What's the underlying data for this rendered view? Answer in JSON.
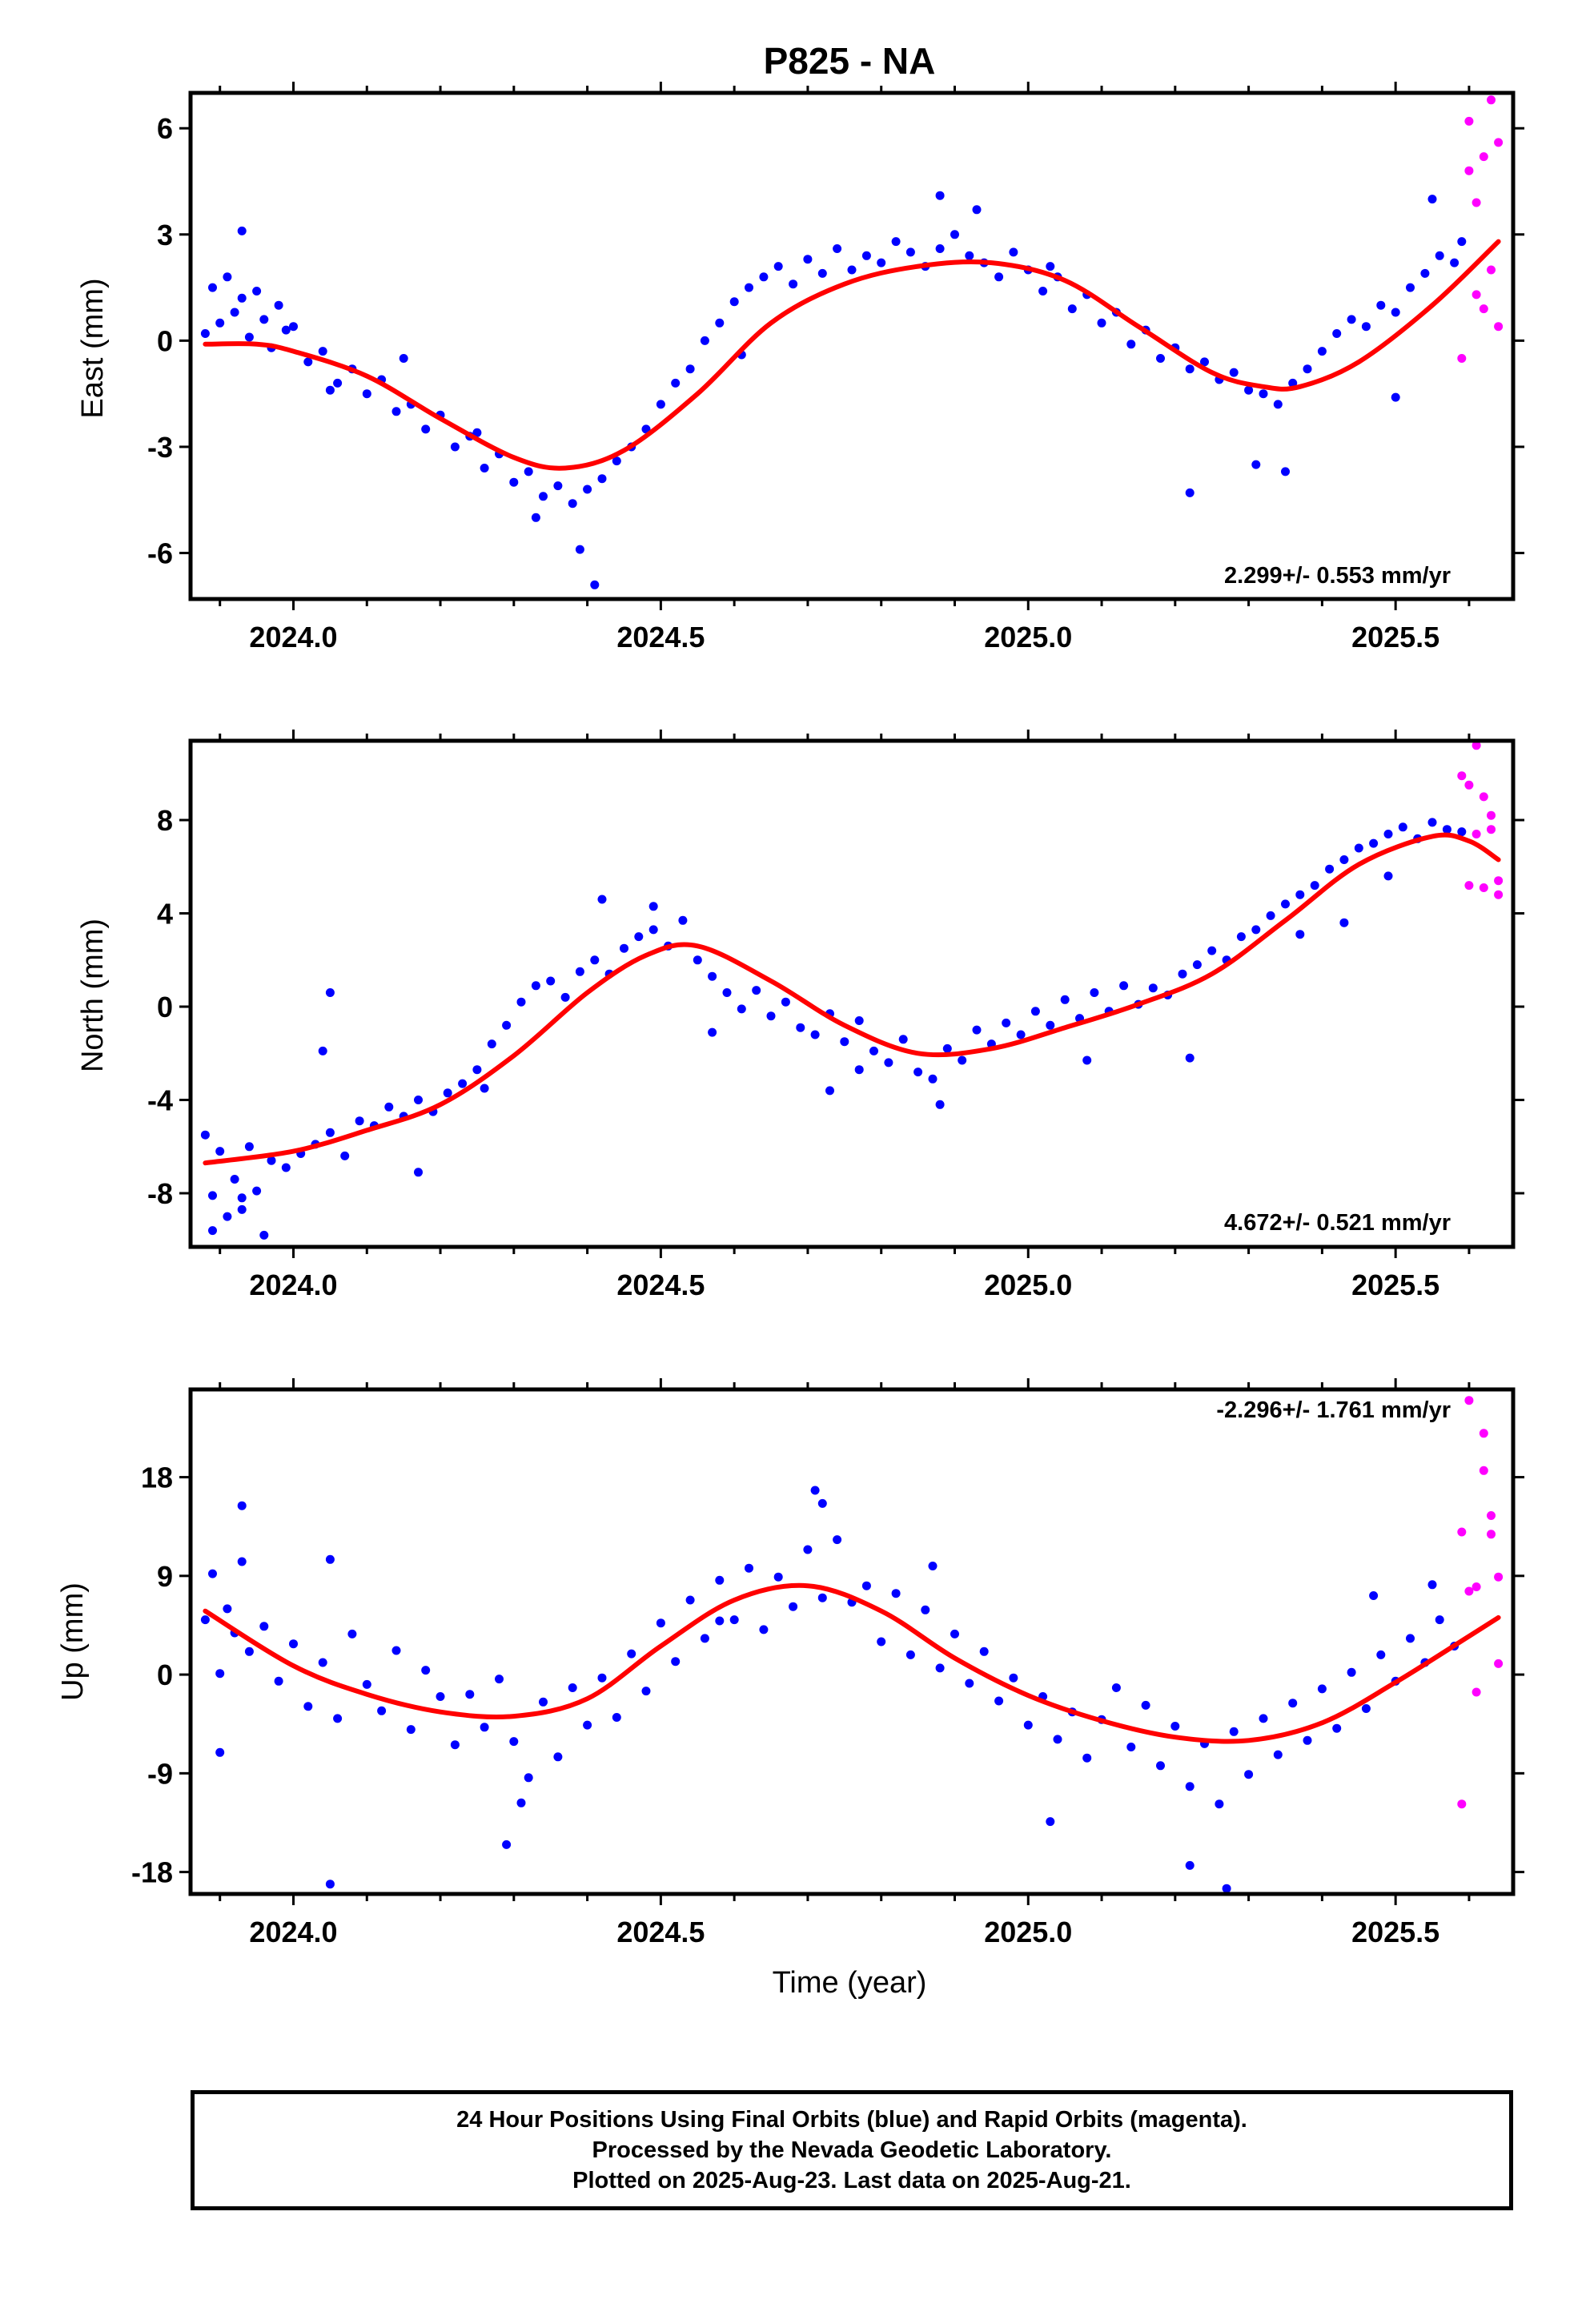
{
  "title": "P825 - NA",
  "xlabel": "Time (year)",
  "colors": {
    "final": "#0000ff",
    "rapid": "#ff00ff",
    "model": "#ff0000",
    "frame": "#000000"
  },
  "footer": {
    "line1": "24 Hour Positions Using Final Orbits (blue) and Rapid Orbits (magenta).",
    "line2": "Processed by the Nevada Geodetic Laboratory.",
    "line3": "Plotted on 2025-Aug-23. Last data on 2025-Aug-21."
  },
  "chart_data": [
    {
      "type": "scatter",
      "ylabel": "East (mm)",
      "rate_label": "2.299+/- 0.553 mm/yr",
      "xlim": [
        2023.86,
        2025.66
      ],
      "ylim": [
        -7.3,
        7.0
      ],
      "yticks": [
        -6,
        -3,
        0,
        3,
        6
      ],
      "xticks": [
        2024.0,
        2024.5,
        2025.0,
        2025.5
      ],
      "xtick_labels": [
        "2024.0",
        "2024.5",
        "2025.0",
        "2025.5"
      ],
      "model": {
        "name": "fit",
        "x": [
          2023.88,
          2023.95,
          2024.0,
          2024.1,
          2024.2,
          2024.3,
          2024.37,
          2024.45,
          2024.55,
          2024.65,
          2024.75,
          2024.85,
          2024.95,
          2025.05,
          2025.15,
          2025.25,
          2025.32,
          2025.37,
          2025.45,
          2025.55,
          2025.64
        ],
        "y": [
          -0.1,
          -0.1,
          -0.3,
          -1.0,
          -2.2,
          -3.3,
          -3.6,
          -3.1,
          -1.5,
          0.5,
          1.6,
          2.1,
          2.2,
          1.7,
          0.4,
          -0.9,
          -1.3,
          -1.3,
          -0.6,
          1.0,
          2.8
        ]
      },
      "final": {
        "x": [
          2023.88,
          2023.89,
          2023.9,
          2023.91,
          2023.92,
          2023.93,
          2023.94,
          2023.95,
          2023.96,
          2023.97,
          2023.98,
          2023.99,
          2024.0,
          2024.02,
          2024.04,
          2024.06,
          2024.08,
          2024.1,
          2024.12,
          2024.14,
          2024.16,
          2024.18,
          2024.2,
          2024.22,
          2024.24,
          2024.26,
          2024.28,
          2024.3,
          2024.32,
          2024.34,
          2024.36,
          2024.38,
          2024.4,
          2024.42,
          2024.44,
          2024.46,
          2024.48,
          2024.5,
          2024.52,
          2024.54,
          2024.56,
          2024.58,
          2024.6,
          2024.62,
          2024.64,
          2024.66,
          2024.68,
          2024.7,
          2024.72,
          2024.74,
          2024.76,
          2024.78,
          2024.8,
          2024.82,
          2024.84,
          2024.86,
          2024.88,
          2024.9,
          2024.92,
          2024.94,
          2024.96,
          2024.98,
          2025.0,
          2025.02,
          2025.04,
          2025.06,
          2025.08,
          2025.1,
          2025.12,
          2025.14,
          2025.16,
          2025.18,
          2025.2,
          2025.22,
          2025.24,
          2025.26,
          2025.28,
          2025.3,
          2025.32,
          2025.34,
          2025.36,
          2025.38,
          2025.4,
          2025.42,
          2025.44,
          2025.46,
          2025.48,
          2025.5,
          2025.52,
          2025.54,
          2025.56,
          2025.58,
          2025.59,
          2023.93,
          2024.05,
          2024.15,
          2024.25,
          2024.33,
          2024.39,
          2024.41,
          2024.61,
          2024.88,
          2024.93,
          2025.03,
          2025.22,
          2025.31,
          2025.35,
          2025.5,
          2025.55
        ],
        "y": [
          0.2,
          1.5,
          0.5,
          1.8,
          0.8,
          1.2,
          0.1,
          1.4,
          0.6,
          -0.2,
          1.0,
          0.3,
          0.4,
          -0.6,
          -0.3,
          -1.2,
          -0.8,
          -1.5,
          -1.1,
          -2.0,
          -1.8,
          -2.5,
          -2.1,
          -3.0,
          -2.7,
          -3.6,
          -3.2,
          -4.0,
          -3.7,
          -4.4,
          -4.1,
          -4.6,
          -4.2,
          -3.9,
          -3.4,
          -3.0,
          -2.5,
          -1.8,
          -1.2,
          -0.8,
          0.0,
          0.5,
          1.1,
          1.5,
          1.8,
          2.1,
          1.6,
          2.3,
          1.9,
          2.6,
          2.0,
          2.4,
          2.2,
          2.8,
          2.5,
          2.1,
          2.6,
          3.0,
          2.4,
          2.2,
          1.8,
          2.5,
          2.0,
          1.4,
          1.8,
          0.9,
          1.3,
          0.5,
          0.8,
          -0.1,
          0.3,
          -0.5,
          -0.2,
          -0.8,
          -0.6,
          -1.1,
          -0.9,
          -1.4,
          -1.5,
          -1.8,
          -1.2,
          -0.8,
          -0.3,
          0.2,
          0.6,
          0.4,
          1.0,
          0.8,
          1.5,
          1.9,
          2.4,
          2.2,
          2.8,
          3.1,
          -1.4,
          -0.5,
          -2.6,
          -5.0,
          -5.9,
          -6.9,
          -0.4,
          4.1,
          3.7,
          2.1,
          -4.3,
          -3.5,
          -3.7,
          -1.6,
          4.0
        ]
      },
      "rapid": {
        "x": [
          2025.59,
          2025.6,
          2025.6,
          2025.61,
          2025.61,
          2025.62,
          2025.62,
          2025.63,
          2025.63,
          2025.64,
          2025.64
        ],
        "y": [
          -0.5,
          4.8,
          6.2,
          1.3,
          3.9,
          0.9,
          5.2,
          6.8,
          2.0,
          5.6,
          0.4
        ]
      }
    },
    {
      "type": "scatter",
      "ylabel": "North (mm)",
      "rate_label": "4.672+/- 0.521 mm/yr",
      "xlim": [
        2023.86,
        2025.66
      ],
      "ylim": [
        -10.3,
        11.4
      ],
      "yticks": [
        -8,
        -4,
        0,
        4,
        8
      ],
      "xticks": [
        2024.0,
        2024.5,
        2025.0,
        2025.5
      ],
      "xtick_labels": [
        "2024.0",
        "2024.5",
        "2025.0",
        "2025.5"
      ],
      "model": {
        "name": "fit",
        "x": [
          2023.88,
          2024.0,
          2024.1,
          2024.2,
          2024.3,
          2024.4,
          2024.48,
          2024.55,
          2024.65,
          2024.75,
          2024.85,
          2024.95,
          2025.05,
          2025.15,
          2025.25,
          2025.35,
          2025.45,
          2025.55,
          2025.6,
          2025.64
        ],
        "y": [
          -6.7,
          -6.2,
          -5.3,
          -4.2,
          -2.1,
          0.6,
          2.2,
          2.6,
          1.1,
          -0.8,
          -2.0,
          -1.8,
          -0.9,
          0.1,
          1.4,
          3.7,
          6.1,
          7.3,
          7.1,
          6.3
        ]
      },
      "final": {
        "x": [
          2023.88,
          2023.89,
          2023.9,
          2023.91,
          2023.92,
          2023.93,
          2023.94,
          2023.95,
          2023.97,
          2023.99,
          2024.01,
          2024.03,
          2024.05,
          2024.07,
          2024.09,
          2024.11,
          2024.13,
          2024.15,
          2024.17,
          2024.19,
          2024.21,
          2024.23,
          2024.25,
          2024.27,
          2024.29,
          2024.31,
          2024.33,
          2024.35,
          2024.37,
          2024.39,
          2024.41,
          2024.43,
          2024.45,
          2024.47,
          2024.49,
          2024.51,
          2024.53,
          2024.55,
          2024.57,
          2024.59,
          2024.61,
          2024.63,
          2024.65,
          2024.67,
          2024.69,
          2024.71,
          2024.73,
          2024.75,
          2024.77,
          2024.79,
          2024.81,
          2024.83,
          2024.85,
          2024.87,
          2024.89,
          2024.91,
          2024.93,
          2024.95,
          2024.97,
          2024.99,
          2025.01,
          2025.03,
          2025.05,
          2025.07,
          2025.09,
          2025.11,
          2025.13,
          2025.15,
          2025.17,
          2025.19,
          2025.21,
          2025.23,
          2025.25,
          2025.27,
          2025.29,
          2025.31,
          2025.33,
          2025.35,
          2025.37,
          2025.39,
          2025.41,
          2025.43,
          2025.45,
          2025.47,
          2025.49,
          2025.51,
          2025.53,
          2025.55,
          2025.57,
          2025.59,
          2023.89,
          2023.93,
          2023.96,
          2024.04,
          2024.05,
          2024.17,
          2024.26,
          2024.42,
          2024.49,
          2024.57,
          2024.73,
          2024.77,
          2024.88,
          2025.08,
          2025.22,
          2025.37,
          2025.43,
          2025.49
        ],
        "y": [
          -5.5,
          -8.1,
          -6.2,
          -9.0,
          -7.4,
          -8.7,
          -6.0,
          -7.9,
          -6.6,
          -6.9,
          -6.3,
          -5.9,
          -5.4,
          -6.4,
          -4.9,
          -5.1,
          -4.3,
          -4.7,
          -4.0,
          -4.5,
          -3.7,
          -3.3,
          -2.7,
          -1.6,
          -0.8,
          0.2,
          0.9,
          1.1,
          0.4,
          1.5,
          2.0,
          1.4,
          2.5,
          3.0,
          3.3,
          2.6,
          3.7,
          2.0,
          1.3,
          0.6,
          -0.1,
          0.7,
          -0.4,
          0.2,
          -0.9,
          -1.2,
          -0.3,
          -1.5,
          -0.6,
          -1.9,
          -2.4,
          -1.4,
          -2.8,
          -3.1,
          -1.8,
          -2.3,
          -1.0,
          -1.6,
          -0.7,
          -1.2,
          -0.2,
          -0.8,
          0.3,
          -0.5,
          0.6,
          -0.2,
          0.9,
          0.1,
          0.8,
          0.5,
          1.4,
          1.8,
          2.4,
          2.0,
          3.0,
          3.3,
          3.9,
          4.4,
          4.8,
          5.2,
          5.9,
          6.3,
          6.8,
          7.0,
          7.4,
          7.7,
          7.2,
          7.9,
          7.6,
          7.5,
          -9.6,
          -8.2,
          -9.8,
          -1.9,
          0.6,
          -7.1,
          -3.5,
          4.6,
          4.3,
          -1.1,
          -3.6,
          -2.7,
          -4.2,
          -2.3,
          -2.2,
          3.1,
          3.6,
          5.6
        ]
      },
      "rapid": {
        "x": [
          2025.59,
          2025.6,
          2025.6,
          2025.61,
          2025.61,
          2025.62,
          2025.62,
          2025.63,
          2025.63,
          2025.64,
          2025.64
        ],
        "y": [
          9.9,
          5.2,
          9.5,
          7.4,
          11.2,
          5.1,
          9.0,
          7.6,
          8.2,
          4.8,
          5.4
        ]
      }
    },
    {
      "type": "scatter",
      "ylabel": "Up (mm)",
      "rate_label": "-2.296+/- 1.761 mm/yr",
      "xlim": [
        2023.86,
        2025.66
      ],
      "ylim": [
        -20.0,
        26.0
      ],
      "yticks": [
        -18,
        -9,
        0,
        9,
        18
      ],
      "xticks": [
        2024.0,
        2024.5,
        2025.0,
        2025.5
      ],
      "xtick_labels": [
        "2024.0",
        "2024.5",
        "2025.0",
        "2025.5"
      ],
      "model": {
        "name": "fit",
        "x": [
          2023.88,
          2024.0,
          2024.1,
          2024.2,
          2024.3,
          2024.4,
          2024.5,
          2024.6,
          2024.7,
          2024.8,
          2024.9,
          2025.0,
          2025.1,
          2025.2,
          2025.3,
          2025.4,
          2025.5,
          2025.6,
          2025.64
        ],
        "y": [
          5.8,
          0.8,
          -1.8,
          -3.4,
          -3.8,
          -2.2,
          2.6,
          6.8,
          8.1,
          5.8,
          1.5,
          -1.9,
          -4.2,
          -5.7,
          -6.0,
          -4.4,
          -0.7,
          3.5,
          5.2
        ]
      },
      "final": {
        "x": [
          2023.88,
          2023.89,
          2023.9,
          2023.91,
          2023.92,
          2023.93,
          2023.94,
          2023.96,
          2023.98,
          2024.0,
          2024.02,
          2024.04,
          2024.06,
          2024.08,
          2024.1,
          2024.12,
          2024.14,
          2024.16,
          2024.18,
          2024.2,
          2024.22,
          2024.24,
          2024.26,
          2024.28,
          2024.3,
          2024.32,
          2024.34,
          2024.36,
          2024.38,
          2024.4,
          2024.42,
          2024.44,
          2024.46,
          2024.48,
          2024.5,
          2024.52,
          2024.54,
          2024.56,
          2024.58,
          2024.6,
          2024.62,
          2024.64,
          2024.66,
          2024.68,
          2024.7,
          2024.72,
          2024.74,
          2024.76,
          2024.78,
          2024.8,
          2024.82,
          2024.84,
          2024.86,
          2024.88,
          2024.9,
          2024.92,
          2024.94,
          2024.96,
          2024.98,
          2025.0,
          2025.02,
          2025.04,
          2025.06,
          2025.08,
          2025.1,
          2025.12,
          2025.14,
          2025.16,
          2025.18,
          2025.2,
          2025.22,
          2025.24,
          2025.26,
          2025.28,
          2025.3,
          2025.32,
          2025.34,
          2025.36,
          2025.38,
          2025.4,
          2025.42,
          2025.44,
          2025.46,
          2025.48,
          2025.5,
          2025.52,
          2025.54,
          2025.56,
          2025.58,
          2023.9,
          2023.93,
          2024.05,
          2024.05,
          2024.29,
          2024.31,
          2024.58,
          2024.71,
          2024.72,
          2024.87,
          2025.03,
          2025.22,
          2025.27,
          2025.47,
          2025.55
        ],
        "y": [
          5.0,
          9.2,
          0.1,
          6.0,
          3.8,
          10.3,
          2.1,
          4.4,
          -0.6,
          2.8,
          -2.9,
          1.1,
          -4.0,
          3.7,
          -0.9,
          -3.3,
          2.2,
          -5.0,
          0.4,
          -2.0,
          -6.4,
          -1.8,
          -4.8,
          -0.4,
          -6.1,
          -9.4,
          -2.5,
          -7.5,
          -1.2,
          -4.6,
          -0.3,
          -3.9,
          1.9,
          -1.5,
          4.7,
          1.2,
          6.8,
          3.3,
          8.6,
          5.0,
          9.7,
          4.1,
          8.9,
          6.2,
          11.4,
          7.0,
          12.3,
          6.6,
          8.1,
          3.0,
          7.4,
          1.8,
          5.9,
          0.6,
          3.7,
          -0.8,
          2.1,
          -2.4,
          -0.3,
          -4.6,
          -2.0,
          -5.9,
          -3.4,
          -7.6,
          -4.1,
          -1.2,
          -6.6,
          -2.8,
          -8.3,
          -4.7,
          -10.2,
          -6.3,
          -11.8,
          -5.2,
          -9.1,
          -4.0,
          -7.3,
          -2.6,
          -6.0,
          -1.3,
          -4.9,
          0.2,
          -3.1,
          1.8,
          -0.6,
          3.3,
          1.1,
          5.0,
          2.6,
          -7.1,
          15.4,
          10.5,
          -19.1,
          -15.5,
          -11.7,
          4.9,
          16.8,
          15.6,
          9.9,
          -13.4,
          -17.4,
          -19.5,
          7.2,
          8.2
        ]
      },
      "rapid": {
        "x": [
          2025.59,
          2025.59,
          2025.6,
          2025.6,
          2025.61,
          2025.61,
          2025.62,
          2025.62,
          2025.63,
          2025.63,
          2025.64,
          2025.64
        ],
        "y": [
          -11.8,
          13.0,
          25.0,
          7.6,
          8.0,
          -1.6,
          22.0,
          18.6,
          14.5,
          12.8,
          8.9,
          1.0
        ]
      }
    }
  ]
}
